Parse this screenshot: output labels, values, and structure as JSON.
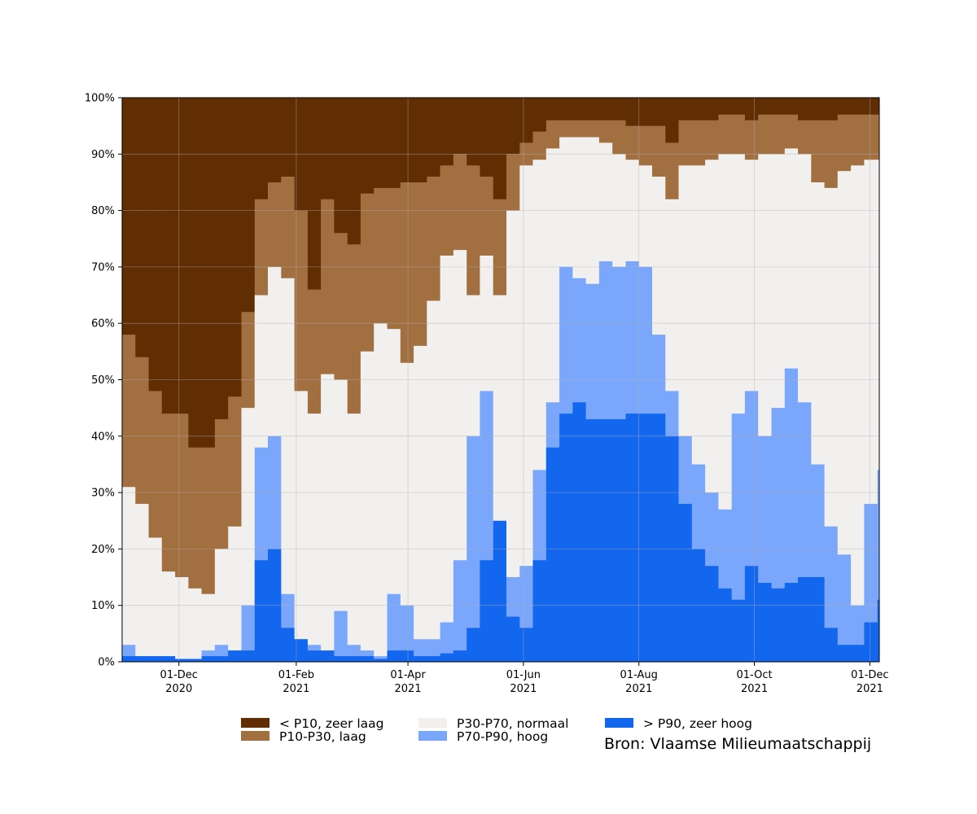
{
  "chart_data": {
    "type": "area",
    "stacked": true,
    "normalized_to_percent": true,
    "x_start": "2020-11-01",
    "x_end": "2021-12-06",
    "x_step_days": 7,
    "ylim": [
      0,
      100
    ],
    "y_ticks": [
      0,
      10,
      20,
      30,
      40,
      50,
      60,
      70,
      80,
      90,
      100
    ],
    "y_tick_labels": [
      "0%",
      "10%",
      "20%",
      "30%",
      "40%",
      "50%",
      "60%",
      "70%",
      "80%",
      "90%",
      "100%"
    ],
    "x_ticks": [
      {
        "date": "2020-12-01",
        "line1": "01-Dec",
        "line2": "2020"
      },
      {
        "date": "2021-02-01",
        "line1": "01-Feb",
        "line2": "2021"
      },
      {
        "date": "2021-04-01",
        "line1": "01-Apr",
        "line2": "2021"
      },
      {
        "date": "2021-06-01",
        "line1": "01-Jun",
        "line2": "2021"
      },
      {
        "date": "2021-08-01",
        "line1": "01-Aug",
        "line2": "2021"
      },
      {
        "date": "2021-10-01",
        "line1": "01-Oct",
        "line2": "2021"
      },
      {
        "date": "2021-12-01",
        "line1": "01-Dec",
        "line2": "2021"
      }
    ],
    "grid": true,
    "series_order_bottom_to_top": [
      "> P90, zeer hoog",
      "P70-P90, hoog",
      "P30-P70, normaal",
      "P10-P30, laag",
      "< P10, zeer laag"
    ],
    "cumulative_upper_bounds_percent": {
      "b1": [
        1,
        1,
        1,
        1,
        0.5,
        0.5,
        1,
        1,
        2,
        2,
        18,
        20,
        6,
        4,
        2,
        2,
        1,
        1,
        1,
        0.5,
        2,
        2,
        1,
        1,
        1.5,
        2,
        6,
        18,
        25,
        8,
        6,
        18,
        38,
        44,
        46,
        43,
        43,
        43,
        44,
        44,
        44,
        40,
        28,
        20,
        17,
        13,
        11,
        17,
        14,
        13,
        14,
        15,
        15,
        6,
        3,
        3,
        7,
        11
      ],
      "b2": [
        3,
        1,
        1,
        1,
        0.5,
        0.5,
        2,
        3,
        2,
        10,
        38,
        40,
        12,
        4,
        3,
        2,
        9,
        3,
        2,
        1,
        12,
        10,
        4,
        4,
        7,
        18,
        40,
        48,
        20,
        15,
        17,
        34,
        46,
        70,
        68,
        67,
        71,
        70,
        71,
        70,
        58,
        48,
        40,
        35,
        30,
        27,
        44,
        48,
        40,
        45,
        52,
        46,
        35,
        24,
        19,
        10,
        28,
        34
      ],
      "b3": [
        31,
        28,
        22,
        16,
        15,
        13,
        12,
        20,
        24,
        45,
        65,
        70,
        68,
        48,
        44,
        51,
        50,
        44,
        55,
        60,
        59,
        53,
        56,
        64,
        72,
        73,
        65,
        72,
        65,
        80,
        88,
        89,
        91,
        93,
        93,
        93,
        92,
        90,
        89,
        88,
        86,
        82,
        88,
        88,
        89,
        90,
        90,
        89,
        90,
        90,
        91,
        90,
        85,
        84,
        87,
        88,
        89,
        89
      ],
      "b4": [
        58,
        54,
        48,
        44,
        44,
        38,
        38,
        43,
        47,
        62,
        82,
        85,
        86,
        80,
        66,
        82,
        76,
        74,
        83,
        84,
        84,
        85,
        85,
        86,
        88,
        90,
        88,
        86,
        82,
        90,
        92,
        94,
        96,
        96,
        96,
        96,
        96,
        96,
        95,
        95,
        95,
        92,
        96,
        96,
        96,
        97,
        97,
        96,
        97,
        97,
        97,
        96,
        96,
        96,
        97,
        97,
        97,
        97
      ]
    },
    "legend": {
      "position": "bottom",
      "entries": [
        {
          "label": "< P10, zeer laag",
          "color": "#612d02"
        },
        {
          "label": "P10-P30, laag",
          "color": "#a27040"
        },
        {
          "label": "P30-P70, normaal",
          "color": "#f2f0ef"
        },
        {
          "label": "P70-P90, hoog",
          "color": "#7aa7fb"
        },
        {
          "label": "> P90, zeer hoog",
          "color": "#1366ee"
        }
      ]
    },
    "source": "Bron: Vlaamse Milieumaatschappij"
  }
}
